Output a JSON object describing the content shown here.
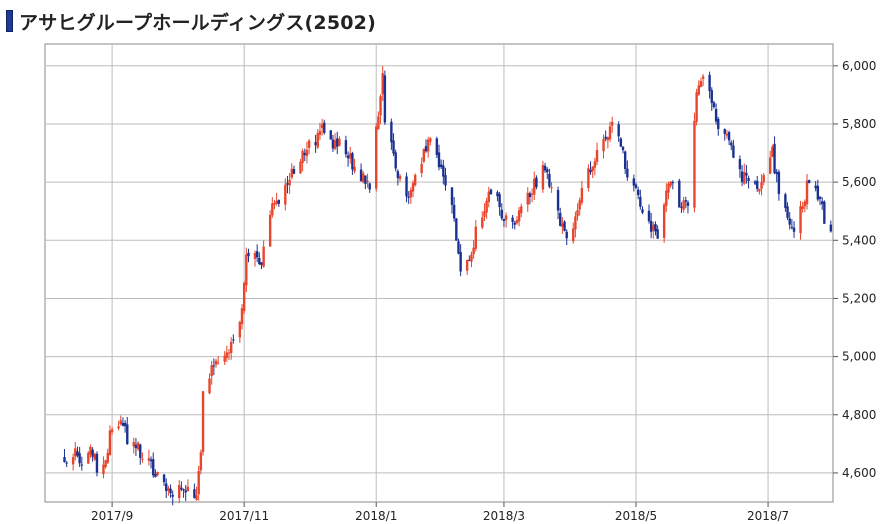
{
  "header": {
    "title": "アサヒグループホールディングス(2502)"
  },
  "colors": {
    "up": "#e8452c",
    "down": "#1b3192",
    "grid": "#bdbdbd",
    "axis": "#555555"
  },
  "chart_data": {
    "type": "candlestick",
    "title": "アサヒグループホールディングス(2502)",
    "xlabel": "",
    "ylabel": "",
    "x_range": [
      "2017-08-01",
      "2018-07-31"
    ],
    "ylim": [
      4500,
      6075
    ],
    "y_ticks": [
      {
        "value": 4600,
        "label": "4,600"
      },
      {
        "value": 4800,
        "label": "4,800"
      },
      {
        "value": 5000,
        "label": "5,000"
      },
      {
        "value": 5200,
        "label": "5,200"
      },
      {
        "value": 5400,
        "label": "5,400"
      },
      {
        "value": 5600,
        "label": "5,600"
      },
      {
        "value": 5800,
        "label": "5,800"
      },
      {
        "value": 6000,
        "label": "6,000"
      }
    ],
    "x_ticks": [
      {
        "date": "2017-09-01",
        "label": "2017/9"
      },
      {
        "date": "2017-11-01",
        "label": "2017/11"
      },
      {
        "date": "2018-01-01",
        "label": "2018/1"
      },
      {
        "date": "2018-03-01",
        "label": "2018/3"
      },
      {
        "date": "2018-05-01",
        "label": "2018/5"
      },
      {
        "date": "2018-07-01",
        "label": "2018/7"
      }
    ],
    "grid": true,
    "closes": [
      [
        "2017-08-10",
        4650
      ],
      [
        "2017-08-15",
        4680
      ],
      [
        "2017-08-18",
        4640
      ],
      [
        "2017-08-22",
        4700
      ],
      [
        "2017-08-25",
        4620
      ],
      [
        "2017-08-29",
        4650
      ],
      [
        "2017-09-01",
        4760
      ],
      [
        "2017-09-05",
        4790
      ],
      [
        "2017-09-08",
        4720
      ],
      [
        "2017-09-12",
        4700
      ],
      [
        "2017-09-15",
        4650
      ],
      [
        "2017-09-19",
        4620
      ],
      [
        "2017-09-22",
        4580
      ],
      [
        "2017-09-26",
        4560
      ],
      [
        "2017-09-29",
        4530
      ],
      [
        "2017-10-03",
        4560
      ],
      [
        "2017-10-06",
        4540
      ],
      [
        "2017-10-10",
        4530
      ],
      [
        "2017-10-12",
        4660
      ],
      [
        "2017-10-13",
        4900
      ],
      [
        "2017-10-16",
        4940
      ],
      [
        "2017-10-19",
        4980
      ],
      [
        "2017-10-24",
        5000
      ],
      [
        "2017-10-27",
        5080
      ],
      [
        "2017-10-31",
        5150
      ],
      [
        "2017-11-02",
        5340
      ],
      [
        "2017-11-06",
        5360
      ],
      [
        "2017-11-09",
        5330
      ],
      [
        "2017-11-13",
        5500
      ],
      [
        "2017-11-16",
        5520
      ],
      [
        "2017-11-20",
        5600
      ],
      [
        "2017-11-24",
        5650
      ],
      [
        "2017-11-28",
        5700
      ],
      [
        "2017-12-01",
        5720
      ],
      [
        "2017-12-05",
        5760
      ],
      [
        "2017-12-08",
        5790
      ],
      [
        "2017-12-12",
        5720
      ],
      [
        "2017-12-15",
        5760
      ],
      [
        "2017-12-19",
        5700
      ],
      [
        "2017-12-22",
        5640
      ],
      [
        "2017-12-27",
        5600
      ],
      [
        "2017-12-29",
        5590
      ],
      [
        "2018-01-04",
        5950
      ],
      [
        "2018-01-05",
        5820
      ],
      [
        "2018-01-09",
        5700
      ],
      [
        "2018-01-12",
        5600
      ],
      [
        "2018-01-16",
        5560
      ],
      [
        "2018-01-19",
        5640
      ],
      [
        "2018-01-23",
        5700
      ],
      [
        "2018-01-26",
        5760
      ],
      [
        "2018-01-30",
        5660
      ],
      [
        "2018-02-02",
        5580
      ],
      [
        "2018-02-06",
        5490
      ],
      [
        "2018-02-09",
        5290
      ],
      [
        "2018-02-13",
        5330
      ],
      [
        "2018-02-16",
        5430
      ],
      [
        "2018-02-20",
        5500
      ],
      [
        "2018-02-23",
        5580
      ],
      [
        "2018-02-27",
        5510
      ],
      [
        "2018-03-02",
        5470
      ],
      [
        "2018-03-06",
        5440
      ],
      [
        "2018-03-09",
        5500
      ],
      [
        "2018-03-13",
        5560
      ],
      [
        "2018-03-16",
        5600
      ],
      [
        "2018-03-20",
        5660
      ],
      [
        "2018-03-23",
        5560
      ],
      [
        "2018-03-27",
        5450
      ],
      [
        "2018-03-30",
        5400
      ],
      [
        "2018-04-03",
        5480
      ],
      [
        "2018-04-06",
        5570
      ],
      [
        "2018-04-10",
        5650
      ],
      [
        "2018-04-13",
        5700
      ],
      [
        "2018-04-17",
        5760
      ],
      [
        "2018-04-20",
        5800
      ],
      [
        "2018-04-24",
        5720
      ],
      [
        "2018-04-27",
        5640
      ],
      [
        "2018-05-01",
        5560
      ],
      [
        "2018-05-04",
        5480
      ],
      [
        "2018-05-08",
        5440
      ],
      [
        "2018-05-11",
        5420
      ],
      [
        "2018-05-15",
        5560
      ],
      [
        "2018-05-18",
        5620
      ],
      [
        "2018-05-22",
        5510
      ],
      [
        "2018-05-25",
        5520
      ],
      [
        "2018-05-29",
        5920
      ],
      [
        "2018-06-01",
        5980
      ],
      [
        "2018-06-05",
        5860
      ],
      [
        "2018-06-08",
        5800
      ],
      [
        "2018-06-12",
        5760
      ],
      [
        "2018-06-15",
        5700
      ],
      [
        "2018-06-19",
        5620
      ],
      [
        "2018-06-22",
        5600
      ],
      [
        "2018-06-26",
        5580
      ],
      [
        "2018-06-29",
        5640
      ],
      [
        "2018-07-03",
        5700
      ],
      [
        "2018-07-06",
        5560
      ],
      [
        "2018-07-10",
        5470
      ],
      [
        "2018-07-13",
        5450
      ],
      [
        "2018-07-17",
        5520
      ],
      [
        "2018-07-20",
        5620
      ],
      [
        "2018-07-24",
        5560
      ],
      [
        "2018-07-27",
        5480
      ],
      [
        "2018-07-31",
        5400
      ]
    ]
  }
}
